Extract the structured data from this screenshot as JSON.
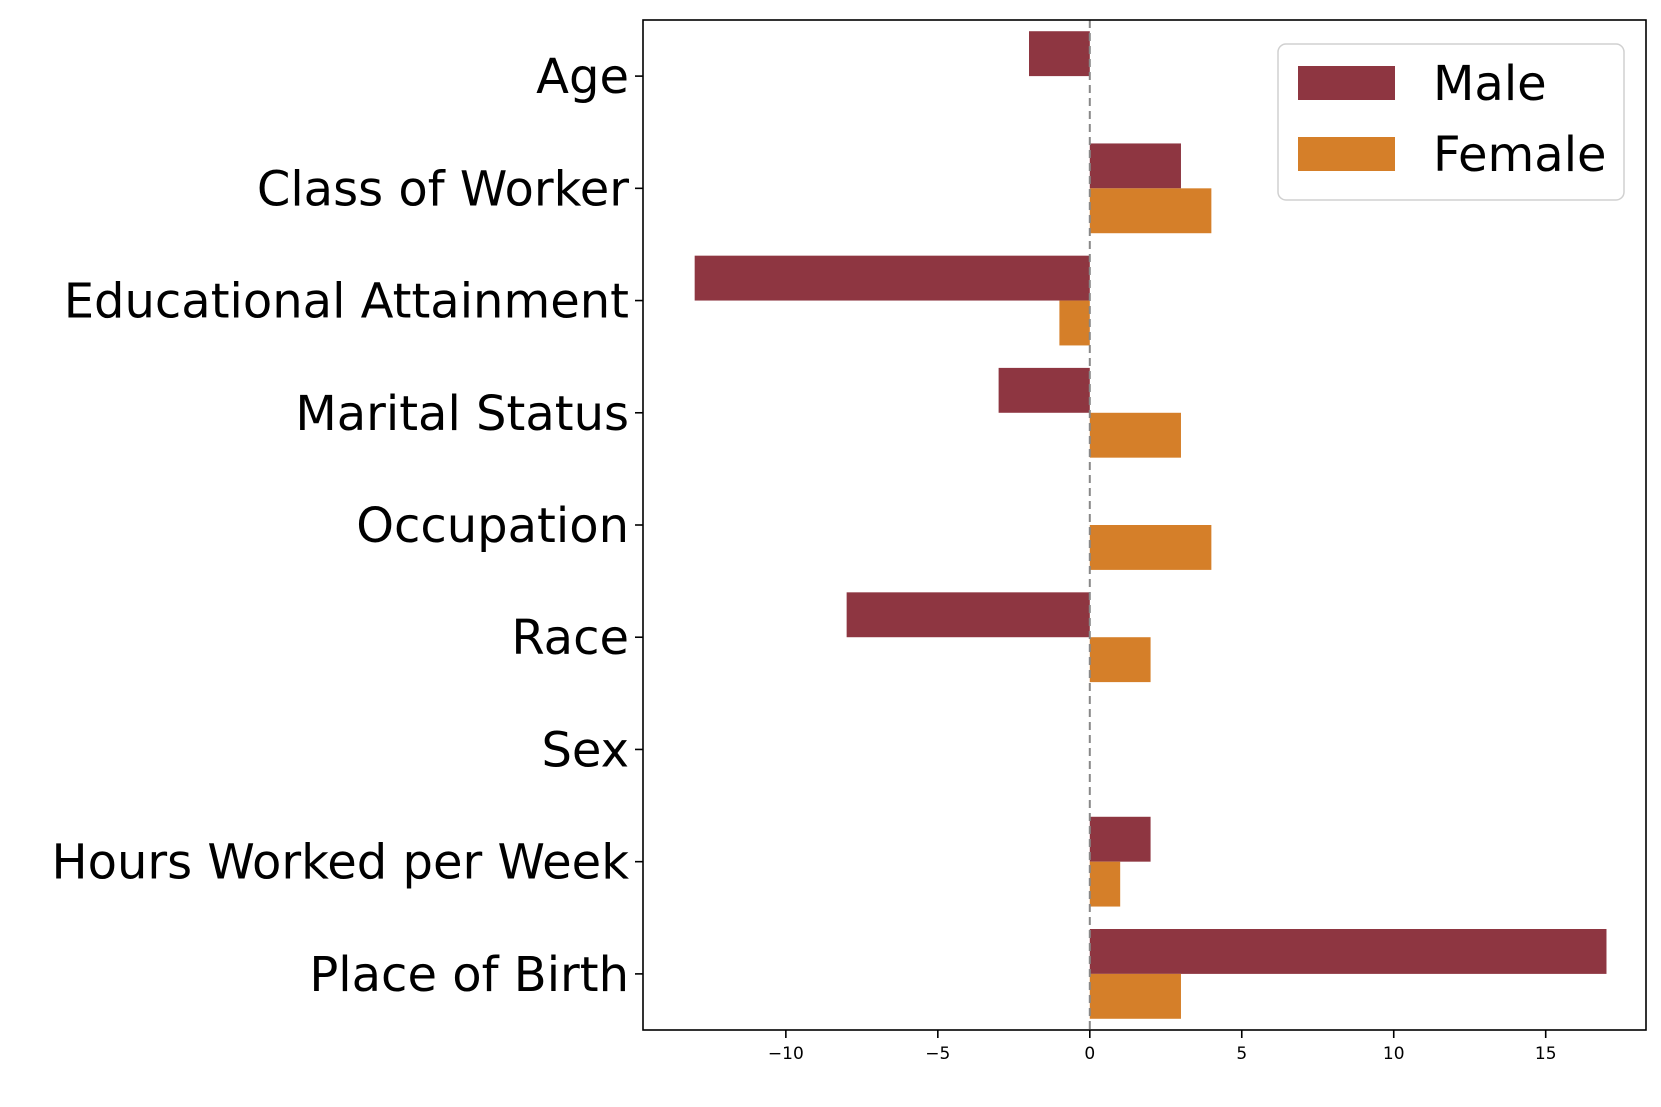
{
  "chart_data": {
    "type": "bar",
    "orientation": "horizontal",
    "title": "",
    "xlabel": "",
    "ylabel": "",
    "categories": [
      "Age",
      "Class of Worker",
      "Educational Attainment",
      "Marital Status",
      "Occupation",
      "Race",
      "Sex",
      "Hours Worked per Week",
      "Place of Birth"
    ],
    "series": [
      {
        "name": "Male",
        "color": "#8e3641",
        "values": [
          -2,
          3,
          -13,
          -3,
          0,
          -8,
          0,
          2,
          17
        ]
      },
      {
        "name": "Female",
        "color": "#d57f29",
        "values": [
          0,
          4,
          -1,
          3,
          4,
          2,
          0,
          1,
          3
        ]
      }
    ],
    "xlim": [
      -14.7,
      18.3
    ],
    "xticks": [
      -10,
      -5,
      0,
      5,
      10,
      15
    ],
    "xtick_labels": [
      "−10",
      "−5",
      "0",
      "5",
      "10",
      "15"
    ],
    "reference_line": {
      "x": 0,
      "style": "dashed",
      "color": "#888888"
    },
    "grid": false,
    "legend": {
      "position": "top-right"
    }
  }
}
